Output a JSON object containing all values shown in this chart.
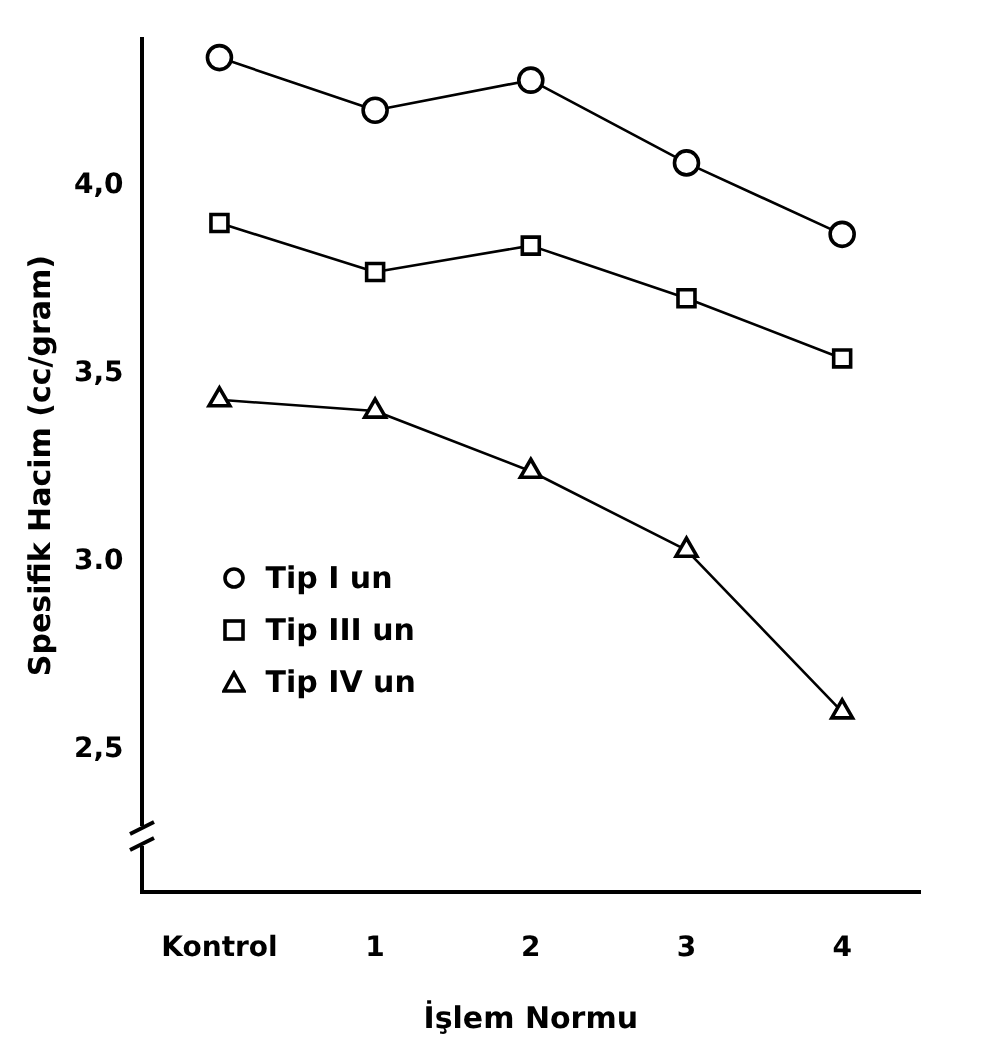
{
  "chart_data": {
    "type": "line",
    "xlabel": "İşlem Normu",
    "ylabel": "Spesifik Hacim (cc/gram)",
    "categories": [
      "Kontrol",
      "1",
      "2",
      "3",
      "4"
    ],
    "series": [
      {
        "name": "Tip I un",
        "color": "#000000",
        "marker": "circle",
        "values": [
          4.34,
          4.2,
          4.28,
          4.06,
          3.87
        ]
      },
      {
        "name": "Tip III un",
        "color": "#000000",
        "marker": "square",
        "values": [
          3.9,
          3.77,
          3.84,
          3.7,
          3.54
        ]
      },
      {
        "name": "Tip IV un",
        "color": "#000000",
        "marker": "triangle",
        "values": [
          3.43,
          3.4,
          3.24,
          3.03,
          2.6
        ]
      }
    ],
    "ylim": [
      2.12,
      4.39
    ],
    "yticks": [
      {
        "value": 2.5,
        "label": "2,5"
      },
      {
        "value": 3.0,
        "label": "3.0"
      },
      {
        "value": 3.5,
        "label": "3,5"
      },
      {
        "value": 4.0,
        "label": "4,0"
      }
    ],
    "grid": false,
    "legend": "bottom left",
    "line_style": "solid"
  }
}
